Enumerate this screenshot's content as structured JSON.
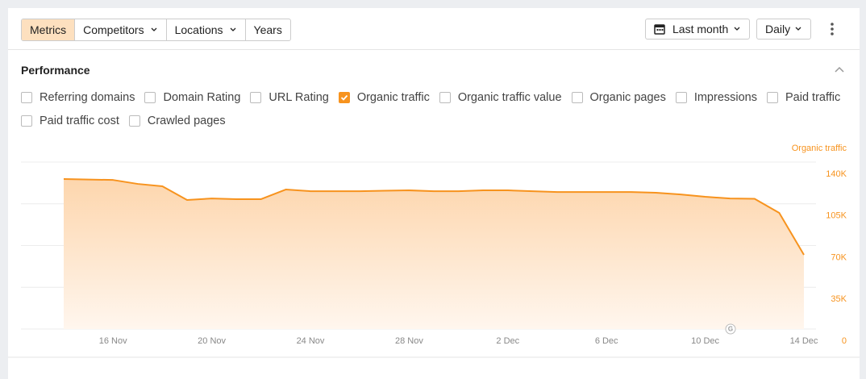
{
  "toolbar": {
    "tabs": [
      {
        "label": "Metrics",
        "dropdown": false
      },
      {
        "label": "Competitors",
        "dropdown": true
      },
      {
        "label": "Locations",
        "dropdown": true
      },
      {
        "label": "Years",
        "dropdown": false
      }
    ],
    "active_tab": 0,
    "period": "Last month",
    "interval": "Daily"
  },
  "performance": {
    "title": "Performance",
    "metrics": [
      {
        "label": "Referring domains",
        "checked": false
      },
      {
        "label": "Domain Rating",
        "checked": false
      },
      {
        "label": "URL Rating",
        "checked": false
      },
      {
        "label": "Organic traffic",
        "checked": true
      },
      {
        "label": "Organic traffic value",
        "checked": false
      },
      {
        "label": "Organic pages",
        "checked": false
      },
      {
        "label": "Impressions",
        "checked": false
      },
      {
        "label": "Paid traffic",
        "checked": false
      },
      {
        "label": "Paid traffic cost",
        "checked": false
      },
      {
        "label": "Crawled pages",
        "checked": false
      }
    ]
  },
  "chart_data": {
    "type": "area",
    "ylabel": "Organic traffic",
    "color": "#f7931e",
    "categories": [
      null,
      null,
      "16 Nov",
      null,
      null,
      null,
      "20 Nov",
      null,
      null,
      null,
      "24 Nov",
      null,
      null,
      null,
      "28 Nov",
      null,
      null,
      null,
      "2 Dec",
      null,
      null,
      null,
      "6 Dec",
      null,
      null,
      null,
      "10 Dec",
      null,
      null,
      null,
      "14 Dec"
    ],
    "values": [
      125800,
      125400,
      125000,
      121700,
      119700,
      108200,
      109500,
      108900,
      108900,
      117000,
      115600,
      115600,
      115600,
      116000,
      116300,
      115600,
      115600,
      116300,
      116300,
      115600,
      114900,
      114900,
      114900,
      114900,
      114300,
      112900,
      110900,
      109500,
      109200,
      97400,
      62200
    ],
    "ylim": [
      0,
      140000
    ],
    "yticks": [
      0,
      {
        "value": 35000,
        "label": "35K"
      },
      {
        "value": 70000,
        "label": "70K"
      },
      {
        "value": 105000,
        "label": "105K"
      },
      {
        "value": 140000,
        "label": "140K"
      }
    ],
    "grid": true,
    "annotation": "G"
  }
}
